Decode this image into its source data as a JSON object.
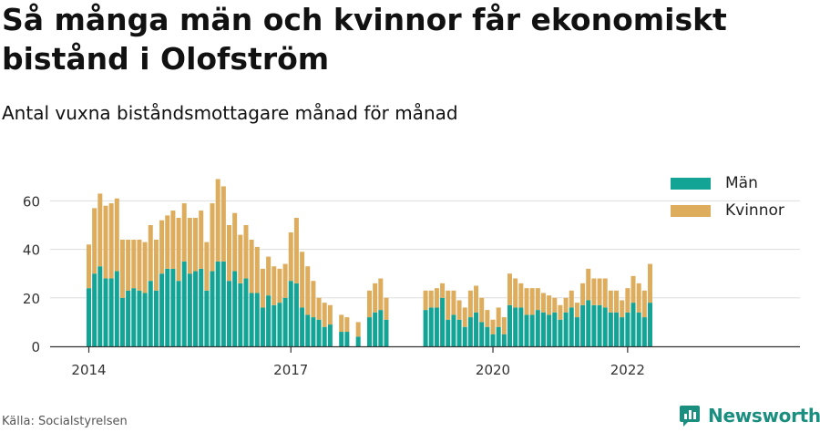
{
  "title": "Så många män och kvinnor får ekonomiskt bistånd i Olofström",
  "subtitle": "Antal vuxna biståndsmottagare månad för månad",
  "source": "Källa: Socialstyrelsen",
  "brand": "Newsworthy",
  "colors": {
    "men": "#13a496",
    "women": "#ddad5d",
    "grid": "#dddddd",
    "axis": "#333333"
  },
  "chart_data": {
    "type": "bar",
    "stacked": true,
    "x_start": "2014-01",
    "x_end": "2022-03",
    "x_ticks": [
      {
        "label": "2014",
        "date": "2014-01"
      },
      {
        "label": "2017",
        "date": "2017-01"
      },
      {
        "label": "2020",
        "date": "2020-01"
      },
      {
        "label": "2022",
        "date": "2022-01"
      }
    ],
    "y_ticks": [
      0,
      20,
      40,
      60
    ],
    "ylim": [
      0,
      70
    ],
    "grid": true,
    "legend": "top-right",
    "series": [
      {
        "name": "Män",
        "values": [
          24,
          30,
          33,
          28,
          28,
          31,
          20,
          23,
          24,
          23,
          22,
          27,
          23,
          30,
          32,
          32,
          27,
          35,
          30,
          31,
          32,
          23,
          31,
          35,
          35,
          27,
          31,
          26,
          28,
          22,
          22,
          16,
          21,
          17,
          18,
          20,
          27,
          26,
          16,
          13,
          12,
          11,
          8,
          9,
          null,
          6,
          6,
          null,
          4,
          null,
          12,
          14,
          15,
          11,
          null,
          null,
          null,
          null,
          null,
          null,
          15,
          16,
          16,
          20,
          11,
          13,
          11,
          8,
          12,
          14,
          10,
          8,
          5,
          8,
          5,
          17,
          16,
          16,
          13,
          13,
          15,
          14,
          13,
          14,
          11,
          14,
          16,
          12,
          17,
          19,
          17,
          17,
          16,
          14,
          14,
          12,
          14,
          18,
          14,
          12,
          18
        ]
      },
      {
        "name": "Kvinnor",
        "values": [
          18,
          27,
          30,
          30,
          31,
          30,
          24,
          21,
          20,
          21,
          21,
          23,
          21,
          22,
          22,
          24,
          26,
          24,
          23,
          22,
          24,
          20,
          28,
          34,
          31,
          23,
          24,
          20,
          22,
          22,
          19,
          16,
          16,
          16,
          14,
          14,
          20,
          27,
          23,
          20,
          15,
          9,
          10,
          8,
          null,
          7,
          6,
          null,
          6,
          null,
          11,
          12,
          13,
          9,
          null,
          null,
          null,
          null,
          null,
          null,
          8,
          7,
          8,
          6,
          12,
          10,
          8,
          8,
          11,
          11,
          10,
          7,
          6,
          8,
          7,
          13,
          12,
          10,
          11,
          11,
          9,
          8,
          8,
          6,
          6,
          6,
          7,
          6,
          9,
          13,
          11,
          11,
          12,
          9,
          9,
          7,
          10,
          11,
          12,
          11,
          16
        ]
      }
    ]
  }
}
